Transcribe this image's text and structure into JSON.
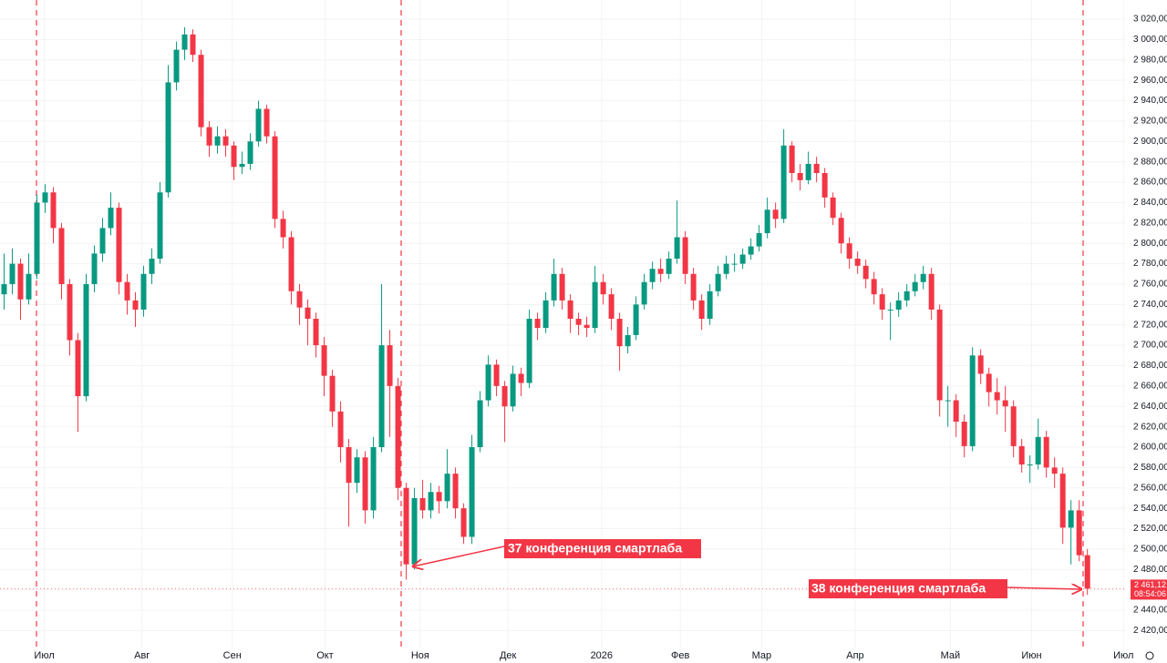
{
  "chart_data": {
    "type": "candlestick",
    "up_color": "#089981",
    "down_color": "#f23645",
    "annotation_color": "#f23645",
    "ylim": [
      2402.5,
      3038.8
    ],
    "xlim": [
      -0.5,
      136.7
    ],
    "yticks": [
      {
        "value": 2420,
        "label": "2 420,00"
      },
      {
        "value": 2440,
        "label": "2 440,00"
      },
      {
        "value": 2460,
        "label": "2 460,00"
      },
      {
        "value": 2480,
        "label": "2 480,00"
      },
      {
        "value": 2500,
        "label": "2 500,00"
      },
      {
        "value": 2520,
        "label": "2 520,00"
      },
      {
        "value": 2540,
        "label": "2 540,00"
      },
      {
        "value": 2560,
        "label": "2 560,00"
      },
      {
        "value": 2580,
        "label": "2 580,00"
      },
      {
        "value": 2600,
        "label": "2 600,00"
      },
      {
        "value": 2620,
        "label": "2 620,00"
      },
      {
        "value": 2640,
        "label": "2 640,00"
      },
      {
        "value": 2660,
        "label": "2 660,00"
      },
      {
        "value": 2680,
        "label": "2 680,00"
      },
      {
        "value": 2700,
        "label": "2 700,00"
      },
      {
        "value": 2720,
        "label": "2 720,00"
      },
      {
        "value": 2740,
        "label": "2 740,00"
      },
      {
        "value": 2760,
        "label": "2 760,00"
      },
      {
        "value": 2780,
        "label": "2 780,00"
      },
      {
        "value": 2800,
        "label": "2 800,00"
      },
      {
        "value": 2820,
        "label": "2 820,00"
      },
      {
        "value": 2840,
        "label": "2 840,00"
      },
      {
        "value": 2860,
        "label": "2 860,00"
      },
      {
        "value": 2880,
        "label": "2 880,00"
      },
      {
        "value": 2900,
        "label": "2 900,00"
      },
      {
        "value": 2920,
        "label": "2 920,00"
      },
      {
        "value": 2940,
        "label": "2 940,00"
      },
      {
        "value": 2960,
        "label": "2 960,00"
      },
      {
        "value": 2980,
        "label": "2 980,00"
      },
      {
        "value": 3000,
        "label": "3 000,00"
      },
      {
        "value": 3020,
        "label": "3 020,00"
      }
    ],
    "xticks": [
      {
        "value": 4.9,
        "label": "Июл"
      },
      {
        "value": 16.8,
        "label": "Авг"
      },
      {
        "value": 27.8,
        "label": "Сен"
      },
      {
        "value": 39.1,
        "label": "Окт"
      },
      {
        "value": 50.7,
        "label": "Ноя"
      },
      {
        "value": 61.4,
        "label": "Дек"
      },
      {
        "value": 72.8,
        "label": "2026"
      },
      {
        "value": 82.4,
        "label": "Фев"
      },
      {
        "value": 92.3,
        "label": "Мар"
      },
      {
        "value": 103.7,
        "label": "Апр"
      },
      {
        "value": 115.3,
        "label": "Май"
      },
      {
        "value": 125.2,
        "label": "Июн"
      },
      {
        "value": 136.4,
        "label": "Июл"
      }
    ],
    "last_price": {
      "value": 2461.12,
      "label": "2 461,12"
    },
    "countdown": "08:54:06",
    "annotations": [
      "37 конференция смартлаба",
      "38 конференция смартлаба"
    ],
    "candles": [
      [
        2750,
        2790,
        2735,
        2760
      ],
      [
        2760,
        2795,
        2750,
        2780
      ],
      [
        2780,
        2785,
        2725,
        2745
      ],
      [
        2745,
        2790,
        2740,
        2770
      ],
      [
        2770,
        2848,
        2765,
        2840
      ],
      [
        2840,
        2858,
        2830,
        2850
      ],
      [
        2850,
        2855,
        2800,
        2815
      ],
      [
        2815,
        2820,
        2745,
        2760
      ],
      [
        2760,
        2765,
        2690,
        2705
      ],
      [
        2705,
        2712,
        2615,
        2650
      ],
      [
        2650,
        2770,
        2645,
        2760
      ],
      [
        2760,
        2798,
        2752,
        2790
      ],
      [
        2790,
        2825,
        2782,
        2815
      ],
      [
        2815,
        2850,
        2808,
        2835
      ],
      [
        2835,
        2840,
        2750,
        2762
      ],
      [
        2762,
        2770,
        2730,
        2744
      ],
      [
        2744,
        2752,
        2718,
        2735
      ],
      [
        2735,
        2778,
        2728,
        2770
      ],
      [
        2770,
        2795,
        2760,
        2785
      ],
      [
        2785,
        2860,
        2780,
        2850
      ],
      [
        2850,
        2975,
        2845,
        2958
      ],
      [
        2958,
        2998,
        2950,
        2990
      ],
      [
        2990,
        3012,
        2980,
        3005
      ],
      [
        3005,
        3010,
        2978,
        2985
      ],
      [
        2985,
        2990,
        2905,
        2914
      ],
      [
        2914,
        2920,
        2885,
        2896
      ],
      [
        2896,
        2915,
        2888,
        2905
      ],
      [
        2905,
        2912,
        2885,
        2896
      ],
      [
        2896,
        2900,
        2862,
        2875
      ],
      [
        2875,
        2890,
        2868,
        2878
      ],
      [
        2878,
        2908,
        2872,
        2900
      ],
      [
        2900,
        2940,
        2895,
        2932
      ],
      [
        2932,
        2936,
        2898,
        2905
      ],
      [
        2905,
        2910,
        2815,
        2824
      ],
      [
        2824,
        2832,
        2795,
        2806
      ],
      [
        2806,
        2812,
        2740,
        2753
      ],
      [
        2753,
        2760,
        2720,
        2737
      ],
      [
        2737,
        2745,
        2700,
        2726
      ],
      [
        2726,
        2732,
        2688,
        2700
      ],
      [
        2700,
        2708,
        2650,
        2670
      ],
      [
        2670,
        2676,
        2620,
        2635
      ],
      [
        2635,
        2645,
        2585,
        2600
      ],
      [
        2600,
        2608,
        2522,
        2565
      ],
      [
        2565,
        2598,
        2555,
        2590
      ],
      [
        2590,
        2596,
        2525,
        2538
      ],
      [
        2538,
        2610,
        2530,
        2600
      ],
      [
        2600,
        2760,
        2595,
        2700
      ],
      [
        2700,
        2715,
        2610,
        2660
      ],
      [
        2660,
        2668,
        2548,
        2560
      ],
      [
        2560,
        2565,
        2470,
        2485
      ],
      [
        2485,
        2560,
        2480,
        2550
      ],
      [
        2550,
        2568,
        2530,
        2538
      ],
      [
        2538,
        2565,
        2530,
        2556
      ],
      [
        2556,
        2562,
        2535,
        2547
      ],
      [
        2547,
        2598,
        2540,
        2574
      ],
      [
        2574,
        2580,
        2530,
        2540
      ],
      [
        2540,
        2545,
        2505,
        2512
      ],
      [
        2512,
        2612,
        2505,
        2600
      ],
      [
        2600,
        2655,
        2595,
        2646
      ],
      [
        2646,
        2690,
        2640,
        2681
      ],
      [
        2681,
        2686,
        2650,
        2660
      ],
      [
        2660,
        2665,
        2605,
        2640
      ],
      [
        2640,
        2680,
        2635,
        2672
      ],
      [
        2672,
        2678,
        2650,
        2663
      ],
      [
        2663,
        2735,
        2658,
        2726
      ],
      [
        2726,
        2732,
        2705,
        2717
      ],
      [
        2717,
        2752,
        2712,
        2744
      ],
      [
        2744,
        2785,
        2738,
        2770
      ],
      [
        2770,
        2776,
        2735,
        2744
      ],
      [
        2744,
        2750,
        2712,
        2726
      ],
      [
        2726,
        2732,
        2710,
        2720
      ],
      [
        2720,
        2728,
        2708,
        2717
      ],
      [
        2717,
        2778,
        2712,
        2762
      ],
      [
        2762,
        2770,
        2740,
        2750
      ],
      [
        2750,
        2756,
        2715,
        2726
      ],
      [
        2726,
        2732,
        2675,
        2699
      ],
      [
        2699,
        2718,
        2692,
        2710
      ],
      [
        2710,
        2748,
        2705,
        2740
      ],
      [
        2740,
        2770,
        2735,
        2762
      ],
      [
        2762,
        2782,
        2755,
        2775
      ],
      [
        2775,
        2785,
        2762,
        2770
      ],
      [
        2770,
        2792,
        2765,
        2785
      ],
      [
        2785,
        2842,
        2780,
        2806
      ],
      [
        2806,
        2812,
        2760,
        2770
      ],
      [
        2770,
        2776,
        2735,
        2744
      ],
      [
        2744,
        2750,
        2715,
        2726
      ],
      [
        2726,
        2760,
        2720,
        2753
      ],
      [
        2753,
        2778,
        2748,
        2770
      ],
      [
        2770,
        2788,
        2765,
        2780
      ],
      [
        2780,
        2790,
        2772,
        2780
      ],
      [
        2780,
        2795,
        2775,
        2789
      ],
      [
        2789,
        2805,
        2784,
        2797
      ],
      [
        2797,
        2818,
        2792,
        2810
      ],
      [
        2810,
        2845,
        2805,
        2833
      ],
      [
        2833,
        2840,
        2815,
        2824
      ],
      [
        2824,
        2912,
        2820,
        2896
      ],
      [
        2896,
        2900,
        2860,
        2869
      ],
      [
        2869,
        2878,
        2852,
        2862
      ],
      [
        2862,
        2890,
        2858,
        2878
      ],
      [
        2878,
        2885,
        2860,
        2869
      ],
      [
        2869,
        2874,
        2835,
        2845
      ],
      [
        2845,
        2850,
        2818,
        2825
      ],
      [
        2825,
        2830,
        2790,
        2800
      ],
      [
        2800,
        2806,
        2775,
        2785
      ],
      [
        2785,
        2792,
        2770,
        2778
      ],
      [
        2778,
        2784,
        2756,
        2765
      ],
      [
        2765,
        2772,
        2740,
        2750
      ],
      [
        2750,
        2756,
        2725,
        2735
      ],
      [
        2735,
        2742,
        2705,
        2735
      ],
      [
        2735,
        2752,
        2728,
        2744
      ],
      [
        2744,
        2760,
        2738,
        2753
      ],
      [
        2753,
        2770,
        2748,
        2762
      ],
      [
        2762,
        2778,
        2755,
        2770
      ],
      [
        2770,
        2776,
        2725,
        2735
      ],
      [
        2735,
        2740,
        2630,
        2646
      ],
      [
        2646,
        2660,
        2620,
        2646
      ],
      [
        2646,
        2652,
        2610,
        2625
      ],
      [
        2625,
        2632,
        2590,
        2601
      ],
      [
        2601,
        2698,
        2596,
        2690
      ],
      [
        2690,
        2696,
        2662,
        2672
      ],
      [
        2672,
        2678,
        2640,
        2654
      ],
      [
        2654,
        2668,
        2632,
        2646
      ],
      [
        2646,
        2660,
        2615,
        2640
      ],
      [
        2640,
        2646,
        2590,
        2601
      ],
      [
        2601,
        2608,
        2575,
        2583
      ],
      [
        2583,
        2592,
        2565,
        2583
      ],
      [
        2583,
        2628,
        2578,
        2610
      ],
      [
        2610,
        2616,
        2570,
        2580
      ],
      [
        2580,
        2590,
        2560,
        2574
      ],
      [
        2574,
        2580,
        2505,
        2521
      ],
      [
        2521,
        2548,
        2485,
        2538
      ],
      [
        2538,
        2548,
        2488,
        2494
      ],
      [
        2494,
        2500,
        2455,
        2461.12
      ]
    ]
  }
}
